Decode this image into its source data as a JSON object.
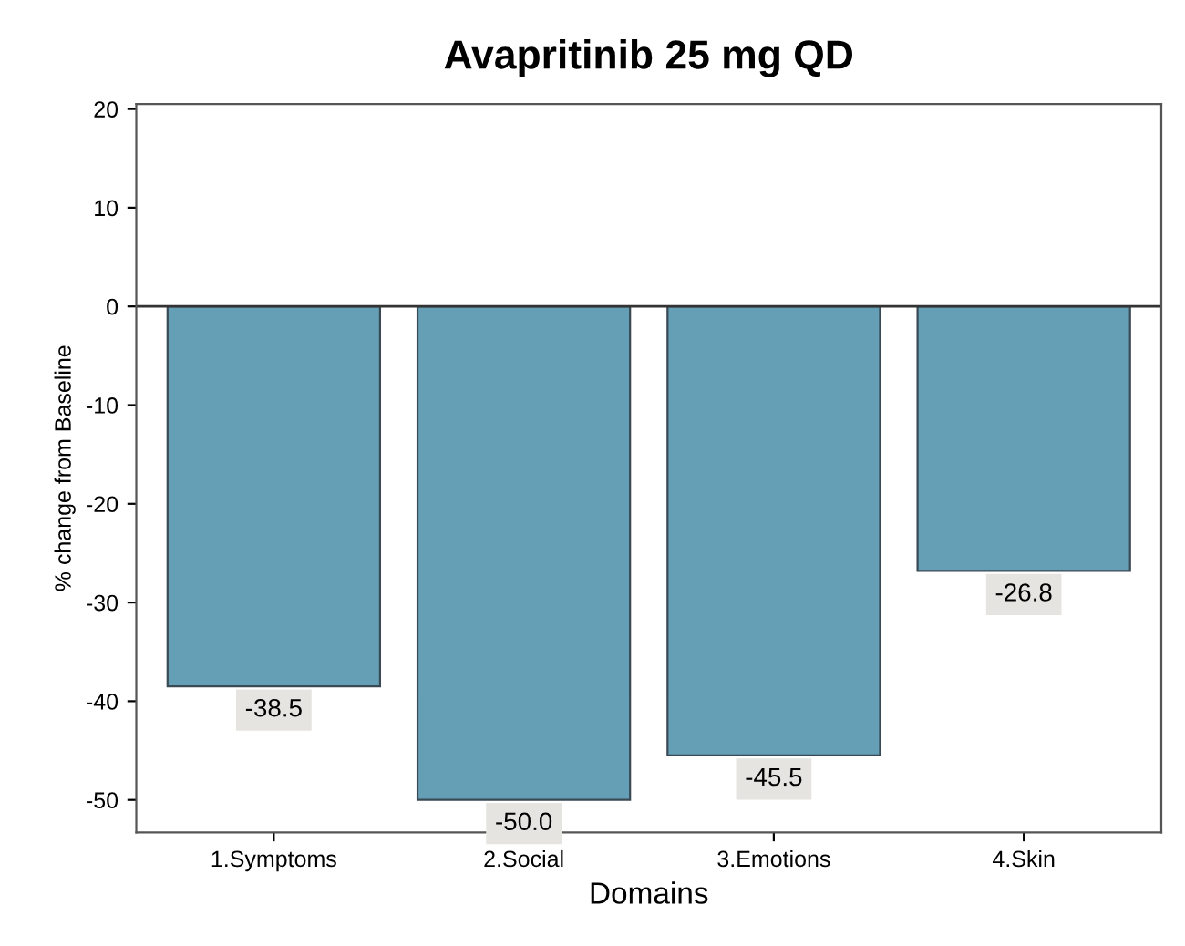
{
  "chart_data": {
    "type": "bar",
    "title": "Avapritinib 25 mg QD",
    "xlabel": "Domains",
    "ylabel": "% change from Baseline",
    "categories": [
      "1.Symptoms",
      "2.Social",
      "3.Emotions",
      "4.Skin"
    ],
    "values": [
      -38.5,
      -50.0,
      -45.5,
      -26.8
    ],
    "value_labels": [
      "-38.5",
      "-50.0",
      "-45.5",
      "-26.8"
    ],
    "color": "#659fb5",
    "ylim": [
      -53.3,
      20.5
    ],
    "yticks": [
      -50,
      -40,
      -30,
      -20,
      -10,
      0,
      10,
      20
    ],
    "ref_lines": [
      {
        "axis": "y",
        "value": 0,
        "color": "#333333"
      }
    ],
    "grid": false
  }
}
